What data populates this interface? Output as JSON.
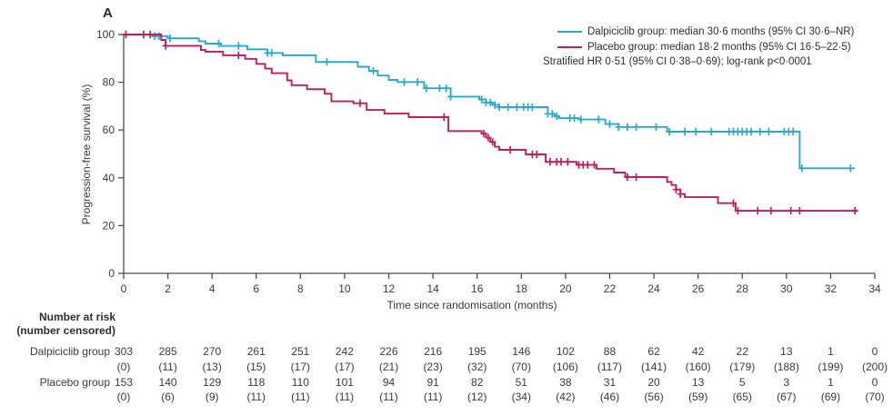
{
  "panel_label": "A",
  "legend": {
    "items": [
      {
        "label": "Dalpiciclib group: median 30·6 months (95% CI 30·6–NR)"
      },
      {
        "label": "Placebo group: median 18·2 months (95% CI 16·5–22·5)"
      }
    ],
    "annotation": "Stratified HR 0·51 (95% CI 0·38–0·69); log-rank p<0·0001"
  },
  "chart_data": {
    "type": "line",
    "subtype": "kaplan-meier-step",
    "title": "A",
    "xlabel": "Time since randomisation (months)",
    "ylabel": "Progression-free survival (%)",
    "xlim": [
      0,
      34
    ],
    "ylim": [
      0,
      100
    ],
    "xticks": [
      0,
      2,
      4,
      6,
      8,
      10,
      12,
      14,
      16,
      18,
      20,
      22,
      24,
      26,
      28,
      30,
      32,
      34
    ],
    "yticks": [
      0,
      20,
      40,
      60,
      80,
      100
    ],
    "grid": false,
    "legend_position": "top-right",
    "series": [
      {
        "name": "Dalpiciclib group",
        "color": "#29A9CB",
        "median": "30·6 months (95% CI 30·6–NR)",
        "steps": [
          [
            0,
            100
          ],
          [
            1.3,
            99.3
          ],
          [
            2,
            98.4
          ],
          [
            3.4,
            97.2
          ],
          [
            3.7,
            96.2
          ],
          [
            4.4,
            95.2
          ],
          [
            5.6,
            93.8
          ],
          [
            6.5,
            92.3
          ],
          [
            7.2,
            91.3
          ],
          [
            8.7,
            88.5
          ],
          [
            10.6,
            86.5
          ],
          [
            11.1,
            84.8
          ],
          [
            11.5,
            82.8
          ],
          [
            12,
            81
          ],
          [
            12.4,
            80.1
          ],
          [
            13.6,
            77.5
          ],
          [
            14.8,
            74
          ],
          [
            16.1,
            72.8
          ],
          [
            16.4,
            71.5
          ],
          [
            16.7,
            70.5
          ],
          [
            17,
            69.6
          ],
          [
            19.2,
            66.8
          ],
          [
            19.5,
            65.8
          ],
          [
            19.7,
            65
          ],
          [
            20.6,
            64.4
          ],
          [
            21.8,
            62.5
          ],
          [
            22.4,
            61.3
          ],
          [
            24.6,
            59.3
          ],
          [
            30.6,
            44
          ],
          [
            33.1,
            44
          ]
        ],
        "censors": [
          1.4,
          1.6,
          2.1,
          4.3,
          5.2,
          6.5,
          6.7,
          9.2,
          11.3,
          12.7,
          13.3,
          13.7,
          14.3,
          14.6,
          14.8,
          16.2,
          16.4,
          16.6,
          16.8,
          17,
          17.4,
          17.8,
          18.1,
          18.3,
          18.5,
          19.2,
          19.4,
          19.6,
          20.2,
          20.4,
          20.7,
          21.5,
          22,
          22.4,
          22.8,
          23.2,
          24.1,
          24.7,
          25.4,
          25.9,
          26.6,
          27.4,
          27.6,
          27.8,
          28,
          28.2,
          28.4,
          28.8,
          29.2,
          29.9,
          30.1,
          30.3,
          30.7,
          32.9
        ]
      },
      {
        "name": "Placebo group",
        "color": "#C01D5C",
        "median": "18·2 months (95% CI 16·5–22·5)",
        "steps": [
          [
            0,
            100
          ],
          [
            1.7,
            97.7
          ],
          [
            1.9,
            95.3
          ],
          [
            3.5,
            93.5
          ],
          [
            3.7,
            92.8
          ],
          [
            4.5,
            91.3
          ],
          [
            5.5,
            89.8
          ],
          [
            6,
            87.7
          ],
          [
            6.4,
            85.7
          ],
          [
            6.7,
            83.8
          ],
          [
            7.4,
            80.8
          ],
          [
            7.6,
            78.8
          ],
          [
            8.3,
            77.1
          ],
          [
            9.1,
            75.2
          ],
          [
            9.4,
            72
          ],
          [
            10.4,
            71.2
          ],
          [
            11,
            68.4
          ],
          [
            11.8,
            66.9
          ],
          [
            12.9,
            65.4
          ],
          [
            14.7,
            59.6
          ],
          [
            16.2,
            58.5
          ],
          [
            16.4,
            56.8
          ],
          [
            16.6,
            55
          ],
          [
            16.8,
            53
          ],
          [
            17,
            51.7
          ],
          [
            18.2,
            49.8
          ],
          [
            19.1,
            46.7
          ],
          [
            20.5,
            45.4
          ],
          [
            21.4,
            43.8
          ],
          [
            22.2,
            42.2
          ],
          [
            22.7,
            40.3
          ],
          [
            24.6,
            38.3
          ],
          [
            24.8,
            37
          ],
          [
            25,
            35.1
          ],
          [
            25.2,
            33.2
          ],
          [
            25.4,
            31.9
          ],
          [
            26.9,
            29.4
          ],
          [
            27.7,
            26.2
          ],
          [
            33.2,
            26.2
          ]
        ],
        "censors": [
          0.1,
          0.9,
          1.2,
          1.9,
          5.2,
          10.7,
          14.5,
          16.3,
          16.5,
          16.7,
          17.5,
          18.5,
          18.7,
          19.3,
          19.6,
          19.8,
          20.1,
          20.6,
          20.8,
          21,
          21.3,
          22.8,
          23.2,
          25,
          25.2,
          27.6,
          27.8,
          28.7,
          29.3,
          30.2,
          30.6,
          33.1
        ]
      }
    ],
    "annotation": "Stratified HR 0·51 (95% CI 0·38–0·69); log-rank p<0·0001"
  },
  "risk_table": {
    "header_line1": "Number at risk",
    "header_line2": "(number censored)",
    "time_points": [
      0,
      2,
      4,
      6,
      8,
      10,
      12,
      14,
      16,
      18,
      20,
      22,
      24,
      26,
      28,
      30,
      32,
      34
    ],
    "rows": [
      {
        "label": "Dalpiciclib group",
        "at_risk": [
          303,
          285,
          270,
          261,
          251,
          242,
          226,
          216,
          195,
          146,
          102,
          88,
          62,
          42,
          22,
          13,
          1,
          0
        ],
        "censored": [
          0,
          11,
          13,
          15,
          17,
          17,
          21,
          23,
          32,
          70,
          106,
          117,
          141,
          160,
          179,
          188,
          199,
          200
        ]
      },
      {
        "label": "Placebo group",
        "at_risk": [
          153,
          140,
          129,
          118,
          110,
          101,
          94,
          91,
          82,
          51,
          38,
          31,
          20,
          13,
          5,
          3,
          1,
          0
        ],
        "censored": [
          0,
          6,
          9,
          11,
          11,
          11,
          11,
          11,
          12,
          34,
          42,
          46,
          56,
          59,
          65,
          67,
          69,
          70
        ]
      }
    ]
  }
}
